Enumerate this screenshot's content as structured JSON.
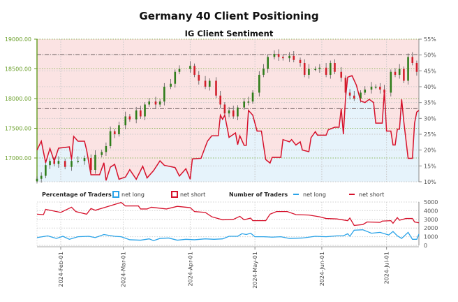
{
  "title": "Germany 40 Client Positioning",
  "subtitle": "IG Client Sentiment",
  "legend": {
    "pct_label": "Percentage of Traders",
    "num_label": "Number of Traders",
    "net_long": "net long",
    "net_short": "net short"
  },
  "colors": {
    "long": "#2aa3e8",
    "short": "#d6112b",
    "up": "#2f7d1a",
    "down": "#d11f2b",
    "bg_short": "#fbe3e3",
    "bg_long": "#e6f3fb",
    "price_axis": "#6a9f2a"
  },
  "chart_data": [
    {
      "type": "candlestick+area",
      "title": "IG Client Sentiment",
      "x_unit": "day of year 2024",
      "xlim": [
        21,
        198
      ],
      "price_axis": {
        "ticks": [
          17000,
          17500,
          18000,
          18500,
          19000
        ],
        "tick_labels": [
          "17000.00",
          "17500.00",
          "18000.00",
          "18500.00",
          "19000.00"
        ],
        "ylim": [
          16600,
          19000
        ]
      },
      "pct_axis": {
        "ticks": [
          10,
          15,
          20,
          25,
          30,
          35,
          40,
          45,
          50,
          55
        ],
        "tick_labels": [
          "10%",
          "15%",
          "20%",
          "25%",
          "30%",
          "35%",
          "40%",
          "45%",
          "50%",
          "55%"
        ],
        "ylim": [
          10,
          55
        ]
      },
      "reference_lines": [
        18740,
        17830
      ],
      "price_close": [
        [
          21,
          16650
        ],
        [
          23,
          16700
        ],
        [
          25,
          16880
        ],
        [
          27,
          16950
        ],
        [
          29,
          16900
        ],
        [
          31,
          16950
        ],
        [
          34,
          16850
        ],
        [
          37,
          16950
        ],
        [
          40,
          16950
        ],
        [
          43,
          17000
        ],
        [
          46,
          16800
        ],
        [
          48,
          17050
        ],
        [
          51,
          17100
        ],
        [
          53,
          17200
        ],
        [
          55,
          17450
        ],
        [
          57,
          17400
        ],
        [
          59,
          17550
        ],
        [
          62,
          17700
        ],
        [
          64,
          17650
        ],
        [
          67,
          17800
        ],
        [
          69,
          17700
        ],
        [
          71,
          17900
        ],
        [
          73,
          17950
        ],
        [
          76,
          17900
        ],
        [
          78,
          17950
        ],
        [
          80,
          18200
        ],
        [
          83,
          18250
        ],
        [
          85,
          18450
        ],
        [
          87,
          18500
        ],
        [
          92,
          18550
        ],
        [
          94,
          18400
        ],
        [
          96,
          18300
        ],
        [
          99,
          18200
        ],
        [
          101,
          18300
        ],
        [
          104,
          18050
        ],
        [
          106,
          17900
        ],
        [
          108,
          17750
        ],
        [
          110,
          17800
        ],
        [
          112,
          17700
        ],
        [
          114,
          17850
        ],
        [
          117,
          17950
        ],
        [
          119,
          17950
        ],
        [
          121,
          18100
        ],
        [
          124,
          18400
        ],
        [
          126,
          18500
        ],
        [
          128,
          18700
        ],
        [
          131,
          18750
        ],
        [
          133,
          18700
        ],
        [
          135,
          18680
        ],
        [
          138,
          18720
        ],
        [
          140,
          18650
        ],
        [
          143,
          18600
        ],
        [
          145,
          18400
        ],
        [
          147,
          18500
        ],
        [
          150,
          18500
        ],
        [
          152,
          18520
        ],
        [
          155,
          18400
        ],
        [
          157,
          18600
        ],
        [
          159,
          18450
        ],
        [
          162,
          18350
        ],
        [
          164,
          18100
        ],
        [
          166,
          18050
        ],
        [
          168,
          18000
        ],
        [
          171,
          18100
        ],
        [
          173,
          18150
        ],
        [
          176,
          18200
        ],
        [
          178,
          18200
        ],
        [
          180,
          18150
        ],
        [
          182,
          18100
        ],
        [
          185,
          18450
        ],
        [
          187,
          18400
        ],
        [
          189,
          18500
        ],
        [
          191,
          18300
        ],
        [
          193,
          18700
        ],
        [
          195,
          18600
        ],
        [
          197,
          18450
        ]
      ],
      "net_long_pct": [
        [
          21,
          20
        ],
        [
          23,
          22.8
        ],
        [
          25,
          16
        ],
        [
          27,
          20.5
        ],
        [
          29,
          16.5
        ],
        [
          31,
          20.6
        ],
        [
          36,
          21
        ],
        [
          37,
          17
        ],
        [
          38,
          24.3
        ],
        [
          40,
          22.8
        ],
        [
          43,
          22.8
        ],
        [
          44,
          20
        ],
        [
          46,
          12.2
        ],
        [
          50,
          12.2
        ],
        [
          52,
          16
        ],
        [
          53,
          10.4
        ],
        [
          55,
          14.6
        ],
        [
          57,
          15.5
        ],
        [
          59,
          10.8
        ],
        [
          62,
          11.5
        ],
        [
          64,
          13.8
        ],
        [
          67,
          10.8
        ],
        [
          70,
          14.9
        ],
        [
          72,
          11.2
        ],
        [
          75,
          13.5
        ],
        [
          78,
          16.6
        ],
        [
          80,
          15.2
        ],
        [
          85,
          14.5
        ],
        [
          87,
          11.8
        ],
        [
          90,
          14.1
        ],
        [
          92,
          10.8
        ],
        [
          93,
          17.2
        ],
        [
          97,
          17.4
        ],
        [
          100,
          22.8
        ],
        [
          102,
          24.5
        ],
        [
          105,
          24.5
        ],
        [
          106,
          31
        ],
        [
          107,
          29.7
        ],
        [
          108,
          31
        ],
        [
          109,
          27.6
        ],
        [
          110,
          24
        ],
        [
          113,
          25.4
        ],
        [
          114,
          21.7
        ],
        [
          115,
          24.5
        ],
        [
          117,
          21.5
        ],
        [
          118,
          21.5
        ],
        [
          119,
          32.5
        ],
        [
          121,
          31
        ],
        [
          123,
          26
        ],
        [
          125,
          26
        ],
        [
          127,
          17
        ],
        [
          129,
          15.9
        ],
        [
          130,
          17.7
        ],
        [
          134,
          17.7
        ],
        [
          135,
          23.3
        ],
        [
          138,
          22.6
        ],
        [
          139,
          23.3
        ],
        [
          141,
          21.6
        ],
        [
          143,
          22.6
        ],
        [
          144,
          20
        ],
        [
          147,
          19.5
        ],
        [
          148,
          23.9
        ],
        [
          150,
          25.8
        ],
        [
          151,
          24.7
        ],
        [
          155,
          24.7
        ],
        [
          156,
          26.4
        ],
        [
          159,
          27.2
        ],
        [
          161,
          27.2
        ],
        [
          162,
          33.1
        ],
        [
          163,
          25
        ],
        [
          164,
          36.5
        ],
        [
          165,
          43
        ],
        [
          167,
          43.5
        ],
        [
          169,
          40.5
        ],
        [
          171,
          35.5
        ],
        [
          173,
          35
        ],
        [
          175,
          36
        ],
        [
          177,
          35
        ],
        [
          178,
          28.5
        ],
        [
          181,
          28.5
        ],
        [
          182,
          38.7
        ],
        [
          183,
          26
        ],
        [
          185,
          26
        ],
        [
          186,
          21.6
        ],
        [
          187,
          21.6
        ],
        [
          188,
          26.6
        ],
        [
          189,
          26.6
        ],
        [
          190,
          36
        ],
        [
          191,
          29
        ],
        [
          193,
          17.4
        ],
        [
          195,
          17.4
        ],
        [
          196,
          28.5
        ],
        [
          197,
          32
        ],
        [
          198,
          32.5
        ]
      ]
    },
    {
      "type": "line",
      "title": "Number of Traders",
      "x_unit": "day of year 2024",
      "xlim": [
        21,
        198
      ],
      "ylim": [
        0,
        5000
      ],
      "yticks": [
        0,
        1000,
        2000,
        3000,
        4000,
        5000
      ],
      "ytick_labels": [
        "0",
        "1000",
        "2000",
        "3000",
        "4000",
        "5000"
      ],
      "xticks": [
        32,
        61,
        92,
        122,
        153,
        183
      ],
      "xtick_labels": [
        "2024-Feb-01",
        "2024-Mar-01",
        "2024-Apr-01",
        "2024-May-01",
        "2024-Jun-01",
        "2024-Jul-01"
      ],
      "series": [
        {
          "name": "net short",
          "values": [
            [
              21,
              3600
            ],
            [
              24,
              3550
            ],
            [
              25,
              4150
            ],
            [
              32,
              3800
            ],
            [
              37,
              4400
            ],
            [
              39,
              3900
            ],
            [
              44,
              3600
            ],
            [
              46,
              4250
            ],
            [
              48,
              4050
            ],
            [
              54,
              4500
            ],
            [
              60,
              4950
            ],
            [
              62,
              4550
            ],
            [
              68,
              4550
            ],
            [
              69,
              4200
            ],
            [
              72,
              4200
            ],
            [
              74,
              4400
            ],
            [
              81,
              4200
            ],
            [
              86,
              4500
            ],
            [
              92,
              4350
            ],
            [
              94,
              3900
            ],
            [
              99,
              3800
            ],
            [
              102,
              3300
            ],
            [
              107,
              2950
            ],
            [
              112,
              3000
            ],
            [
              115,
              3350
            ],
            [
              117,
              2950
            ],
            [
              120,
              3150
            ],
            [
              121,
              2850
            ],
            [
              127,
              2850
            ],
            [
              129,
              3600
            ],
            [
              132,
              3900
            ],
            [
              137,
              3900
            ],
            [
              141,
              3550
            ],
            [
              147,
              3500
            ],
            [
              152,
              3300
            ],
            [
              155,
              3100
            ],
            [
              160,
              3050
            ],
            [
              165,
              2850
            ],
            [
              166,
              3150
            ],
            [
              168,
              2300
            ],
            [
              172,
              2400
            ],
            [
              174,
              2700
            ],
            [
              180,
              2650
            ],
            [
              181,
              2800
            ],
            [
              185,
              2850
            ],
            [
              186,
              2550
            ],
            [
              188,
              3200
            ],
            [
              189,
              2900
            ],
            [
              192,
              3100
            ],
            [
              195,
              3100
            ],
            [
              196,
              2700
            ],
            [
              198,
              2600
            ]
          ]
        },
        {
          "name": "net long",
          "values": [
            [
              21,
              900
            ],
            [
              26,
              1100
            ],
            [
              30,
              800
            ],
            [
              33,
              1050
            ],
            [
              36,
              700
            ],
            [
              40,
              1000
            ],
            [
              45,
              1050
            ],
            [
              48,
              900
            ],
            [
              52,
              1250
            ],
            [
              57,
              1050
            ],
            [
              60,
              1000
            ],
            [
              64,
              650
            ],
            [
              69,
              600
            ],
            [
              73,
              750
            ],
            [
              75,
              550
            ],
            [
              78,
              800
            ],
            [
              82,
              850
            ],
            [
              86,
              600
            ],
            [
              90,
              700
            ],
            [
              94,
              650
            ],
            [
              99,
              750
            ],
            [
              103,
              700
            ],
            [
              107,
              750
            ],
            [
              110,
              1050
            ],
            [
              114,
              1050
            ],
            [
              116,
              1350
            ],
            [
              118,
              1250
            ],
            [
              120,
              1400
            ],
            [
              122,
              1000
            ],
            [
              126,
              1000
            ],
            [
              130,
              950
            ],
            [
              134,
              1000
            ],
            [
              138,
              800
            ],
            [
              144,
              850
            ],
            [
              150,
              1050
            ],
            [
              155,
              1000
            ],
            [
              160,
              1100
            ],
            [
              163,
              1100
            ],
            [
              165,
              1350
            ],
            [
              166,
              1050
            ],
            [
              168,
              1750
            ],
            [
              172,
              1800
            ],
            [
              176,
              1400
            ],
            [
              180,
              1500
            ],
            [
              184,
              1200
            ],
            [
              186,
              1600
            ],
            [
              188,
              1100
            ],
            [
              190,
              800
            ],
            [
              193,
              1500
            ],
            [
              195,
              700
            ],
            [
              197,
              700
            ],
            [
              198,
              1300
            ]
          ]
        }
      ]
    }
  ]
}
